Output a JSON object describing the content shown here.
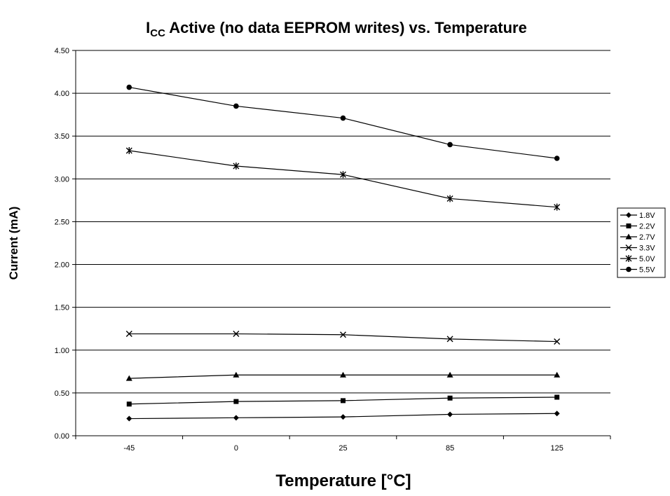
{
  "chart_data": {
    "type": "line",
    "title": {
      "main": "I",
      "subscript": "CC",
      "rest": " Active (no data EEPROM writes) vs. Temperature"
    },
    "xlabel": "Temperature [°C]",
    "ylabel": "Current (mA)",
    "categories": [
      "-45",
      "0",
      "25",
      "85",
      "125"
    ],
    "ylim": [
      0,
      4.5
    ],
    "yticks": [
      "0.00",
      "0.50",
      "1.00",
      "1.50",
      "2.00",
      "2.50",
      "3.00",
      "3.50",
      "4.00",
      "4.50"
    ],
    "grid": "horizontal",
    "legend_position": "right",
    "series": [
      {
        "name": "1.8V",
        "marker": "diamond",
        "values": [
          0.2,
          0.21,
          0.22,
          0.25,
          0.26
        ]
      },
      {
        "name": "2.2V",
        "marker": "square",
        "values": [
          0.37,
          0.4,
          0.41,
          0.44,
          0.45
        ]
      },
      {
        "name": "2.7V",
        "marker": "triangle",
        "values": [
          0.67,
          0.71,
          0.71,
          0.71,
          0.71
        ]
      },
      {
        "name": "3.3V",
        "marker": "x",
        "values": [
          1.19,
          1.19,
          1.18,
          1.13,
          1.1
        ]
      },
      {
        "name": "5.0V",
        "marker": "star",
        "values": [
          3.33,
          3.15,
          3.05,
          2.77,
          2.67
        ]
      },
      {
        "name": "5.5V",
        "marker": "circle",
        "values": [
          4.07,
          3.85,
          3.71,
          3.4,
          3.24
        ]
      }
    ]
  }
}
